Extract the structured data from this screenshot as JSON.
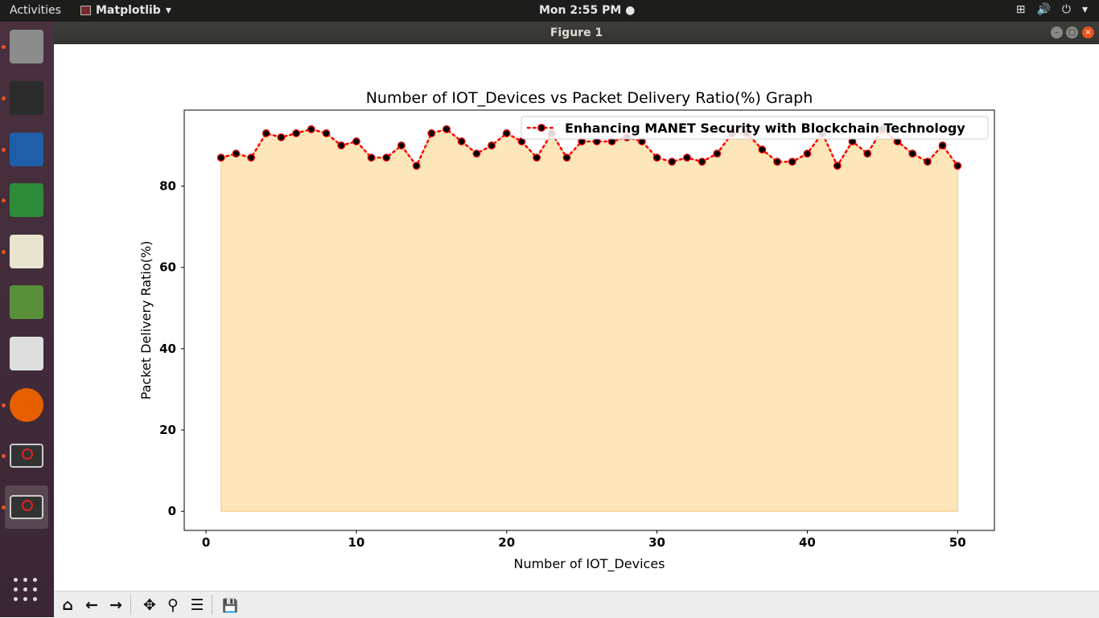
{
  "topbar": {
    "activities": "Activities",
    "app_name": "Matplotlib",
    "app_menu_arrow": "▾",
    "clock": "Mon  2:55 PM ●",
    "tray": [
      "network-icon",
      "volume-icon",
      "power-icon"
    ],
    "tray_glyphs": [
      "⊞",
      "🔊",
      "⏻",
      "▾"
    ]
  },
  "dock": {
    "apps": [
      {
        "name": "files",
        "color": "#8c8c8c",
        "running": true
      },
      {
        "name": "terminal",
        "color": "#2b2b2b",
        "running": true
      },
      {
        "name": "writer",
        "color": "#1f5fa8",
        "running": true
      },
      {
        "name": "calc",
        "color": "#2e8b3a",
        "running": true
      },
      {
        "name": "text-editor",
        "color": "#e9e4cf",
        "running": true
      },
      {
        "name": "image-viewer",
        "color": "#5a8f3a",
        "running": false
      },
      {
        "name": "notes",
        "color": "#dedede",
        "running": false
      },
      {
        "name": "firefox",
        "color": "#e66000",
        "running": true
      },
      {
        "name": "python-window-1",
        "color": "#333333",
        "running": true
      },
      {
        "name": "python-window-2",
        "color": "#333333",
        "running": true,
        "active": true
      }
    ]
  },
  "window": {
    "title": "Figure 1",
    "controls": [
      "–",
      "□",
      "×"
    ]
  },
  "chart_data": {
    "type": "line",
    "title": "Number of IOT_Devices vs Packet Delivery Ratio(%) Graph",
    "xlabel": "Number of IOT_Devices",
    "ylabel": "Packet Delivery Ratio(%)",
    "xlim": [
      -1.45,
      52.45
    ],
    "ylim": [
      -4.7,
      98.7
    ],
    "xticks": [
      0,
      10,
      20,
      30,
      40,
      50
    ],
    "yticks": [
      0,
      20,
      40,
      60,
      80
    ],
    "grid": false,
    "legend_position": "upper-right",
    "series": [
      {
        "name": "Enhancing MANET Security with Blockchain Technology",
        "line_color": "#ff0000",
        "marker_color": "#000000",
        "fill_color": "#fde3b2",
        "x": [
          1,
          2,
          3,
          4,
          5,
          6,
          7,
          8,
          9,
          10,
          11,
          12,
          13,
          14,
          15,
          16,
          17,
          18,
          19,
          20,
          21,
          22,
          23,
          24,
          25,
          26,
          27,
          28,
          29,
          30,
          31,
          32,
          33,
          34,
          35,
          36,
          37,
          38,
          39,
          40,
          41,
          42,
          43,
          44,
          45,
          46,
          47,
          48,
          49,
          50
        ],
        "values": [
          87,
          88,
          87,
          93,
          92,
          93,
          94,
          93,
          90,
          91,
          87,
          87,
          90,
          85,
          93,
          94,
          91,
          88,
          90,
          93,
          91,
          87,
          93,
          87,
          91,
          91,
          91,
          92,
          91,
          87,
          86,
          87,
          86,
          88,
          93,
          93,
          89,
          86,
          86,
          88,
          93,
          85,
          91,
          88,
          94,
          91,
          88,
          86,
          90,
          85
        ]
      }
    ]
  },
  "toolbar": {
    "buttons": [
      {
        "name": "home-button",
        "glyph": "⌂"
      },
      {
        "name": "back-button",
        "glyph": "←"
      },
      {
        "name": "forward-button",
        "glyph": "→"
      },
      {
        "name": "pan-button",
        "glyph": "✥"
      },
      {
        "name": "zoom-button",
        "glyph": "⚲"
      },
      {
        "name": "configure-subplots-button",
        "glyph": "☰"
      },
      {
        "name": "save-button",
        "glyph": "💾"
      }
    ]
  }
}
